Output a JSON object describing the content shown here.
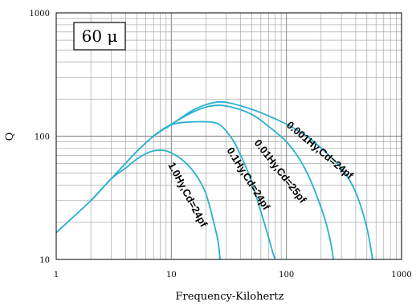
{
  "chart_data": {
    "type": "line",
    "xlabel": "Frequency-Kilohertz",
    "ylabel": "Q",
    "x_scale": "log",
    "y_scale": "log",
    "xlim": [
      1,
      1000
    ],
    "ylim": [
      10,
      1000
    ],
    "x_ticks": [
      "1",
      "10",
      "100",
      "1000"
    ],
    "y_ticks": [
      "10",
      "100",
      "1000"
    ],
    "grid": true,
    "annotation": "60 μ",
    "line_color": "#29b0d0",
    "series": [
      {
        "name": "1.0Hy,Cd=24pf",
        "points": [
          [
            1,
            16.5
          ],
          [
            2,
            30
          ],
          [
            3,
            45
          ],
          [
            4,
            55
          ],
          [
            5,
            65
          ],
          [
            6,
            72
          ],
          [
            7,
            76
          ],
          [
            8,
            77
          ],
          [
            9,
            76
          ],
          [
            10,
            73
          ],
          [
            12,
            66
          ],
          [
            14,
            58
          ],
          [
            16,
            50
          ],
          [
            18,
            42
          ],
          [
            20,
            34
          ],
          [
            22,
            25
          ],
          [
            24,
            18
          ],
          [
            25.5,
            14
          ],
          [
            26.5,
            10
          ]
        ]
      },
      {
        "name": "0.1Hy,Cd=24pf",
        "points": [
          [
            2,
            30
          ],
          [
            3,
            45
          ],
          [
            5,
            75
          ],
          [
            7,
            100
          ],
          [
            9,
            118
          ],
          [
            11,
            127
          ],
          [
            14,
            130
          ],
          [
            18,
            131
          ],
          [
            22,
            130
          ],
          [
            26,
            125
          ],
          [
            30,
            110
          ],
          [
            35,
            90
          ],
          [
            40,
            70
          ],
          [
            46,
            52
          ],
          [
            52,
            38
          ],
          [
            58,
            27
          ],
          [
            64,
            20
          ],
          [
            70,
            15
          ],
          [
            77,
            11
          ],
          [
            80,
            10
          ]
        ]
      },
      {
        "name": "0.01Hy,Cd=25pf",
        "points": [
          [
            7,
            100
          ],
          [
            10,
            125
          ],
          [
            15,
            155
          ],
          [
            20,
            172
          ],
          [
            26,
            178
          ],
          [
            35,
            170
          ],
          [
            50,
            150
          ],
          [
            70,
            120
          ],
          [
            100,
            90
          ],
          [
            130,
            65
          ],
          [
            160,
            45
          ],
          [
            190,
            30
          ],
          [
            220,
            20
          ],
          [
            245,
            13
          ],
          [
            255,
            10
          ]
        ]
      },
      {
        "name": "0.001Hy,Cd=24pf",
        "points": [
          [
            9,
            116
          ],
          [
            15,
            160
          ],
          [
            20,
            180
          ],
          [
            25,
            189
          ],
          [
            30,
            188
          ],
          [
            40,
            176
          ],
          [
            60,
            155
          ],
          [
            100,
            125
          ],
          [
            150,
            100
          ],
          [
            200,
            80
          ],
          [
            300,
            55
          ],
          [
            400,
            35
          ],
          [
            500,
            18
          ],
          [
            560,
            10
          ]
        ]
      }
    ]
  }
}
